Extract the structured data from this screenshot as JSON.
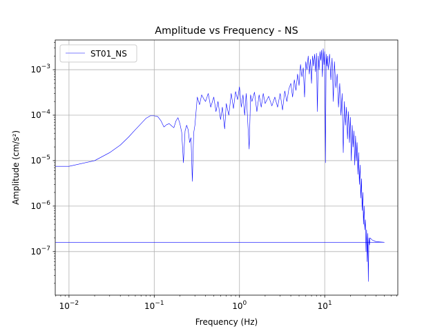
{
  "chart_data": {
    "type": "line",
    "title": "Amplitude vs Frequency - NS",
    "xlabel": "Frequency (Hz)",
    "ylabel": "Amplitude (cm/s²)",
    "x_scale": "log",
    "y_scale": "log",
    "xlim": [
      0.0069,
      72
    ],
    "ylim": [
      1.1e-08,
      0.0045
    ],
    "x_ticks": [
      {
        "value": 0.01,
        "base": "10",
        "exp": "−2"
      },
      {
        "value": 0.1,
        "base": "10",
        "exp": "−1"
      },
      {
        "value": 1,
        "base": "10",
        "exp": "0"
      },
      {
        "value": 10,
        "base": "10",
        "exp": "1"
      }
    ],
    "y_ticks": [
      {
        "value": 1e-07,
        "base": "10",
        "exp": "−7"
      },
      {
        "value": 1e-06,
        "base": "10",
        "exp": "−6"
      },
      {
        "value": 1e-05,
        "base": "10",
        "exp": "−5"
      },
      {
        "value": 0.0001,
        "base": "10",
        "exp": "−4"
      },
      {
        "value": 0.001,
        "base": "10",
        "exp": "−3"
      }
    ],
    "grid": true,
    "legend": {
      "position": "top-left"
    },
    "series": [
      {
        "name": "ST01_NS",
        "color": "#0000ff",
        "points": [
          [
            0.00694,
            7.5e-06
          ],
          [
            0.01,
            7.5e-06
          ],
          [
            0.02,
            1e-05
          ],
          [
            0.03,
            1.5e-05
          ],
          [
            0.04,
            2.2e-05
          ],
          [
            0.05,
            3.3e-05
          ],
          [
            0.06,
            4.8e-05
          ],
          [
            0.07,
            6.5e-05
          ],
          [
            0.08,
            8.5e-05
          ],
          [
            0.09,
            9.7e-05
          ],
          [
            0.1,
            9.7e-05
          ],
          [
            0.11,
            9.3e-05
          ],
          [
            0.12,
            7.5e-05
          ],
          [
            0.13,
            5.5e-05
          ],
          [
            0.14,
            6.2e-05
          ],
          [
            0.15,
            6.5e-05
          ],
          [
            0.16,
            5.8e-05
          ],
          [
            0.17,
            5.3e-05
          ],
          [
            0.18,
            7.5e-05
          ],
          [
            0.19,
            8.8e-05
          ],
          [
            0.2,
            6.5e-05
          ],
          [
            0.21,
            4.2e-05
          ],
          [
            0.22,
            9e-06
          ],
          [
            0.23,
            4.5e-05
          ],
          [
            0.24,
            6e-05
          ],
          [
            0.25,
            4.8e-05
          ],
          [
            0.26,
            2.5e-05
          ],
          [
            0.27,
            3.2e-05
          ],
          [
            0.28,
            3.5e-06
          ],
          [
            0.29,
            4e-05
          ],
          [
            0.3,
            6e-05
          ],
          [
            0.32,
            0.00025
          ],
          [
            0.34,
            0.00017
          ],
          [
            0.36,
            0.00028
          ],
          [
            0.38,
            0.00023
          ],
          [
            0.4,
            0.0002
          ],
          [
            0.43,
            0.0003
          ],
          [
            0.46,
            0.00015
          ],
          [
            0.5,
            0.00025
          ],
          [
            0.53,
            0.00012
          ],
          [
            0.56,
            0.0002
          ],
          [
            0.6,
            8e-05
          ],
          [
            0.63,
            0.00015
          ],
          [
            0.67,
            5e-05
          ],
          [
            0.7,
            0.00018
          ],
          [
            0.75,
            0.0001
          ],
          [
            0.8,
            0.0003
          ],
          [
            0.85,
            0.00014
          ],
          [
            0.9,
            0.00033
          ],
          [
            0.95,
            0.00022
          ],
          [
            1.0,
            0.00042
          ],
          [
            1.05,
            0.00015
          ],
          [
            1.1,
            0.00028
          ],
          [
            1.15,
            0.0001
          ],
          [
            1.2,
            0.0003
          ],
          [
            1.3,
            1.8e-05
          ],
          [
            1.35,
            0.00028
          ],
          [
            1.4,
            0.0002
          ],
          [
            1.5,
            0.00032
          ],
          [
            1.6,
            0.00012
          ],
          [
            1.7,
            0.00028
          ],
          [
            1.8,
            0.00015
          ],
          [
            1.9,
            0.0003
          ],
          [
            2.0,
            0.00018
          ],
          [
            2.2,
            0.00026
          ],
          [
            2.4,
            0.00016
          ],
          [
            2.6,
            0.00025
          ],
          [
            2.8,
            0.00015
          ],
          [
            3.0,
            0.0003
          ],
          [
            3.2,
            0.00013
          ],
          [
            3.4,
            0.00034
          ],
          [
            3.6,
            0.0002
          ],
          [
            3.8,
            0.00038
          ],
          [
            4.0,
            0.0005
          ],
          [
            4.2,
            0.00025
          ],
          [
            4.4,
            0.0006
          ],
          [
            4.6,
            0.00035
          ],
          [
            4.8,
            0.0008
          ],
          [
            5.0,
            0.00045
          ],
          [
            5.2,
            0.0013
          ],
          [
            5.4,
            0.0007
          ],
          [
            5.6,
            0.0011
          ],
          [
            5.8,
            0.00025
          ],
          [
            6.0,
            0.0015
          ],
          [
            6.2,
            0.001
          ],
          [
            6.4,
            0.002
          ],
          [
            6.6,
            0.0008
          ],
          [
            6.8,
            0.0017
          ],
          [
            7.0,
            0.0005
          ],
          [
            7.2,
            0.002
          ],
          [
            7.4,
            0.0012
          ],
          [
            7.6,
            0.0022
          ],
          [
            7.8,
            0.0009
          ],
          [
            8.0,
            0.0023
          ],
          [
            8.2,
            0.00012
          ],
          [
            8.4,
            0.002
          ],
          [
            8.6,
            0.001
          ],
          [
            8.8,
            0.0025
          ],
          [
            9.0,
            0.0016
          ],
          [
            9.2,
            0.0027
          ],
          [
            9.4,
            0.0007
          ],
          [
            9.6,
            0.0029
          ],
          [
            9.8,
            0.0013
          ],
          [
            10.0,
            0.0025
          ],
          [
            10.2,
            9e-06
          ],
          [
            10.4,
            0.0022
          ],
          [
            10.6,
            0.0012
          ],
          [
            10.8,
            0.002
          ],
          [
            11.0,
            0.001
          ],
          [
            11.4,
            0.0022
          ],
          [
            11.8,
            0.0006
          ],
          [
            12.2,
            0.0018
          ],
          [
            12.6,
            0.0002
          ],
          [
            13.0,
            0.0015
          ],
          [
            13.5,
            0.0004
          ],
          [
            14.0,
            0.0008
          ],
          [
            14.5,
            0.00015
          ],
          [
            15.0,
            0.0005
          ],
          [
            15.5,
            0.0001
          ],
          [
            16.0,
            0.0003
          ],
          [
            16.5,
            1.5e-05
          ],
          [
            17.0,
            0.0002
          ],
          [
            17.5,
            6e-05
          ],
          [
            18.0,
            0.00015
          ],
          [
            18.5,
            3e-05
          ],
          [
            19.0,
            0.00012
          ],
          [
            19.5,
            2.5e-05
          ],
          [
            20.0,
            9e-05
          ],
          [
            20.5,
            1e-05
          ],
          [
            21.0,
            6e-05
          ],
          [
            21.5,
            2e-05
          ],
          [
            22.0,
            4.5e-05
          ],
          [
            22.5,
            8e-06
          ],
          [
            23.0,
            3.5e-05
          ],
          [
            23.5,
            1e-05
          ],
          [
            24.0,
            2.5e-05
          ],
          [
            24.5,
            5e-06
          ],
          [
            25.0,
            1.5e-05
          ],
          [
            25.5,
            3e-06
          ],
          [
            26.0,
            8e-06
          ],
          [
            26.5,
            1.5e-06
          ],
          [
            27.0,
            4e-06
          ],
          [
            27.5,
            8e-07
          ],
          [
            28.0,
            2e-06
          ],
          [
            28.5,
            4e-07
          ],
          [
            29.0,
            1e-06
          ],
          [
            29.5,
            3e-07
          ],
          [
            30.0,
            5e-07
          ],
          [
            30.5,
            1e-07
          ],
          [
            31.0,
            3e-07
          ],
          [
            31.5,
            6e-08
          ],
          [
            32.0,
            2.5e-07
          ],
          [
            32.5,
            2.2e-08
          ],
          [
            33.0,
            2e-07
          ],
          [
            33.5,
            1.4e-07
          ],
          [
            34.0,
            2e-07
          ],
          [
            36.0,
            1.8e-07
          ],
          [
            40.0,
            1.65e-07
          ],
          [
            50.0,
            1.6e-07
          ],
          [
            50.0,
            1.6e-07
          ],
          [
            0.00694,
            1.6e-07
          ]
        ]
      }
    ]
  }
}
